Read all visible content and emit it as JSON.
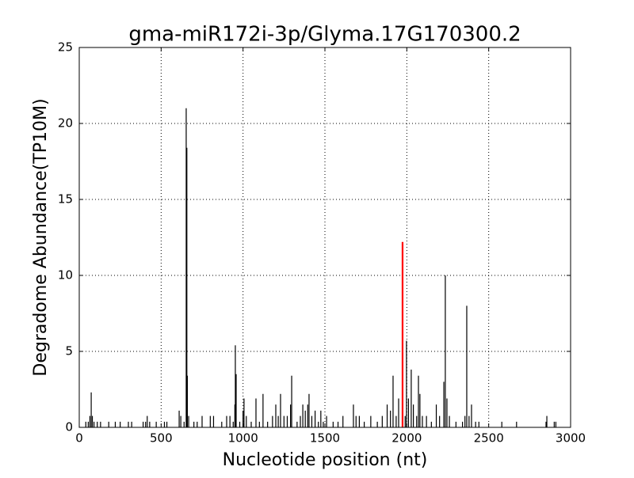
{
  "chart_data": {
    "type": "stem",
    "title": "gma-miR172i-3p/Glyma.17G170300.2",
    "x_label": "Nucleotide position (nt)",
    "y_label": "Degradome Abundance(TP10M)",
    "xlim": [
      0,
      3000
    ],
    "xticks": [
      0,
      500,
      1000,
      1500,
      2000,
      2500,
      3000
    ],
    "ylim": [
      0,
      25
    ],
    "yticks": [
      0,
      5,
      10,
      15,
      20,
      25
    ],
    "grid": true,
    "series": [
      {
        "color": "#000000",
        "x": [
          40,
          55,
          65,
          73,
          80,
          90,
          110,
          130,
          180,
          220,
          250,
          300,
          320,
          390,
          405,
          415,
          430,
          470,
          520,
          535,
          610,
          620,
          640,
          653,
          657,
          660,
          668,
          700,
          720,
          750,
          800,
          820,
          870,
          900,
          920,
          940,
          950,
          953,
          958,
          980,
          1000,
          1006,
          1020,
          1050,
          1079,
          1100,
          1122,
          1150,
          1180,
          1200,
          1215,
          1229,
          1250,
          1270,
          1290,
          1297,
          1330,
          1350,
          1365,
          1380,
          1395,
          1403,
          1420,
          1440,
          1460,
          1475,
          1490,
          1510,
          1550,
          1580,
          1610,
          1674,
          1690,
          1710,
          1740,
          1780,
          1820,
          1850,
          1880,
          1900,
          1916,
          1935,
          1950,
          1990,
          1998,
          2010,
          2027,
          2040,
          2060,
          2071,
          2080,
          2095,
          2120,
          2150,
          2180,
          2200,
          2226,
          2235,
          2245,
          2260,
          2300,
          2340,
          2355,
          2366,
          2380,
          2395,
          2420,
          2440,
          2580,
          2670,
          2850,
          2855,
          2900,
          2910
        ],
        "values": [
          0.37,
          0.37,
          0.75,
          2.3,
          0.75,
          0.37,
          0.37,
          0.37,
          0.37,
          0.37,
          0.37,
          0.37,
          0.37,
          0.37,
          0.37,
          0.75,
          0.37,
          0.37,
          0.37,
          0.37,
          1.1,
          0.75,
          0.37,
          21,
          18.4,
          3.4,
          0.75,
          0.37,
          0.37,
          0.75,
          0.75,
          0.75,
          0.37,
          0.75,
          0.75,
          0.37,
          1.5,
          5.4,
          3.5,
          0.37,
          1.1,
          1.9,
          0.75,
          0.37,
          1.9,
          0.37,
          2.2,
          0.37,
          0.75,
          1.5,
          0.75,
          2.2,
          0.75,
          0.75,
          1.5,
          3.4,
          0.37,
          0.75,
          1.5,
          1.1,
          1.5,
          2.2,
          0.75,
          1.1,
          0.37,
          1.1,
          0.37,
          0.75,
          0.37,
          0.37,
          0.75,
          1.5,
          0.75,
          0.75,
          0.37,
          0.75,
          0.37,
          0.75,
          1.5,
          1.1,
          3.4,
          0.75,
          1.9,
          0.75,
          5.7,
          1.9,
          3.8,
          1.5,
          0.75,
          3.4,
          2.2,
          0.75,
          0.75,
          0.37,
          1.5,
          0.75,
          3.0,
          10,
          1.9,
          0.75,
          0.37,
          0.37,
          0.75,
          8,
          0.75,
          1.5,
          0.37,
          0.37,
          0.37,
          0.37,
          0.37,
          0.75,
          0.37,
          0.37
        ]
      },
      {
        "color": "#ff0000",
        "x": [
          1974
        ],
        "values": [
          12.2
        ]
      }
    ]
  }
}
